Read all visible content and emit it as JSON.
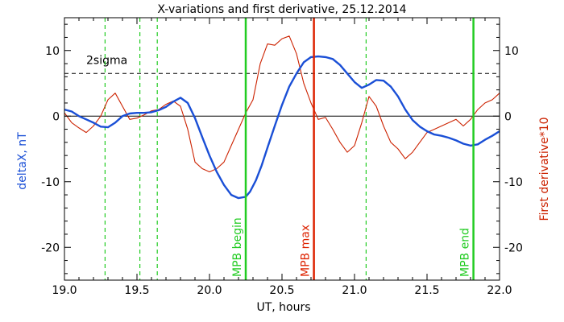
{
  "chart_data": {
    "type": "line",
    "title": "X-variations and first derivative, 25.12.2014",
    "xlabel": "UT, hours",
    "ylabel_left": "deltaX, nT",
    "ylabel_right": "First derivative*10",
    "xlim": [
      19.0,
      22.0
    ],
    "ylim": [
      -25,
      15
    ],
    "x_ticks": [
      "19.0",
      "19.5",
      "20.0",
      "20.5",
      "21.0",
      "21.5",
      "22.0"
    ],
    "x_tick_values": [
      19.0,
      19.5,
      20.0,
      20.5,
      21.0,
      21.5,
      22.0
    ],
    "y_ticks": [
      "10",
      "0",
      "-10",
      "-20"
    ],
    "y_tick_values": [
      10,
      0,
      -10,
      -20
    ],
    "grid": false,
    "sigma_label": "2sigma",
    "sigma_value": 6.5,
    "colors": {
      "deltaX": "#1a4fd6",
      "derivative": "#cc2200",
      "mpb_begin_end": "#22cc22",
      "mpb_max": "#dd2200",
      "dashed_markers": "#22cc22",
      "frame": "#000000"
    },
    "vertical_markers": [
      {
        "x": 19.28,
        "style": "dashed"
      },
      {
        "x": 19.52,
        "style": "dashed"
      },
      {
        "x": 19.64,
        "style": "dashed"
      },
      {
        "x": 21.08,
        "style": "dashed"
      }
    ],
    "mpb_lines": [
      {
        "x": 20.25,
        "label": "MPB begin",
        "color": "#22cc22"
      },
      {
        "x": 20.72,
        "label": "MPB max",
        "color": "#dd2200"
      },
      {
        "x": 21.82,
        "label": "MPB end",
        "color": "#22cc22"
      }
    ],
    "series": [
      {
        "name": "deltaX",
        "axis": "left",
        "x": [
          19.0,
          19.05,
          19.1,
          19.15,
          19.2,
          19.25,
          19.3,
          19.35,
          19.4,
          19.45,
          19.5,
          19.55,
          19.6,
          19.65,
          19.7,
          19.75,
          19.8,
          19.85,
          19.9,
          19.95,
          20.0,
          20.05,
          20.1,
          20.15,
          20.2,
          20.25,
          20.28,
          20.32,
          20.36,
          20.4,
          20.45,
          20.5,
          20.55,
          20.6,
          20.65,
          20.7,
          20.75,
          20.8,
          20.85,
          20.9,
          20.95,
          21.0,
          21.05,
          21.1,
          21.15,
          21.2,
          21.25,
          21.3,
          21.35,
          21.4,
          21.45,
          21.5,
          21.55,
          21.6,
          21.65,
          21.7,
          21.75,
          21.8,
          21.85,
          21.9,
          21.95,
          22.0
        ],
        "values": [
          1.0,
          0.7,
          0.0,
          -0.5,
          -1.0,
          -1.6,
          -1.7,
          -1.0,
          0.0,
          0.4,
          0.5,
          0.5,
          0.6,
          0.9,
          1.4,
          2.2,
          2.8,
          2.0,
          -0.3,
          -3.2,
          -6.0,
          -8.5,
          -10.5,
          -12.0,
          -12.5,
          -12.3,
          -11.5,
          -9.8,
          -7.5,
          -4.8,
          -1.5,
          1.7,
          4.5,
          6.5,
          8.2,
          9.0,
          9.1,
          9.0,
          8.7,
          7.8,
          6.5,
          5.2,
          4.3,
          4.8,
          5.5,
          5.4,
          4.5,
          3.0,
          1.0,
          -0.6,
          -1.6,
          -2.3,
          -2.8,
          -3.0,
          -3.3,
          -3.7,
          -4.2,
          -4.5,
          -4.3,
          -3.6,
          -3.0,
          -2.3
        ]
      },
      {
        "name": "First derivative*10",
        "axis": "right",
        "x": [
          19.0,
          19.05,
          19.1,
          19.15,
          19.2,
          19.25,
          19.3,
          19.35,
          19.4,
          19.45,
          19.5,
          19.55,
          19.6,
          19.65,
          19.7,
          19.75,
          19.8,
          19.85,
          19.9,
          19.95,
          20.0,
          20.05,
          20.1,
          20.15,
          20.2,
          20.25,
          20.3,
          20.35,
          20.4,
          20.45,
          20.5,
          20.55,
          20.6,
          20.65,
          20.7,
          20.75,
          20.8,
          20.85,
          20.9,
          20.95,
          21.0,
          21.05,
          21.1,
          21.15,
          21.2,
          21.25,
          21.3,
          21.35,
          21.4,
          21.45,
          21.5,
          21.55,
          21.6,
          21.65,
          21.7,
          21.75,
          21.8,
          21.85,
          21.9,
          21.95,
          22.0
        ],
        "values": [
          0.5,
          -1.0,
          -1.8,
          -2.5,
          -1.5,
          0.0,
          2.5,
          3.5,
          1.5,
          -0.5,
          -0.3,
          0.2,
          0.8,
          1.0,
          1.8,
          2.3,
          1.5,
          -2.0,
          -7.0,
          -8.0,
          -8.5,
          -8.0,
          -7.0,
          -4.5,
          -2.0,
          0.5,
          2.5,
          8.0,
          11.0,
          10.8,
          11.8,
          12.2,
          9.5,
          5.0,
          2.0,
          -0.5,
          -0.2,
          -2.0,
          -4.0,
          -5.5,
          -4.5,
          -1.0,
          3.0,
          1.5,
          -1.5,
          -4.0,
          -5.0,
          -6.5,
          -5.5,
          -4.0,
          -2.5,
          -2.0,
          -1.5,
          -1.0,
          -0.5,
          -1.5,
          -0.5,
          1.0,
          2.0,
          2.5,
          3.5
        ]
      }
    ]
  }
}
